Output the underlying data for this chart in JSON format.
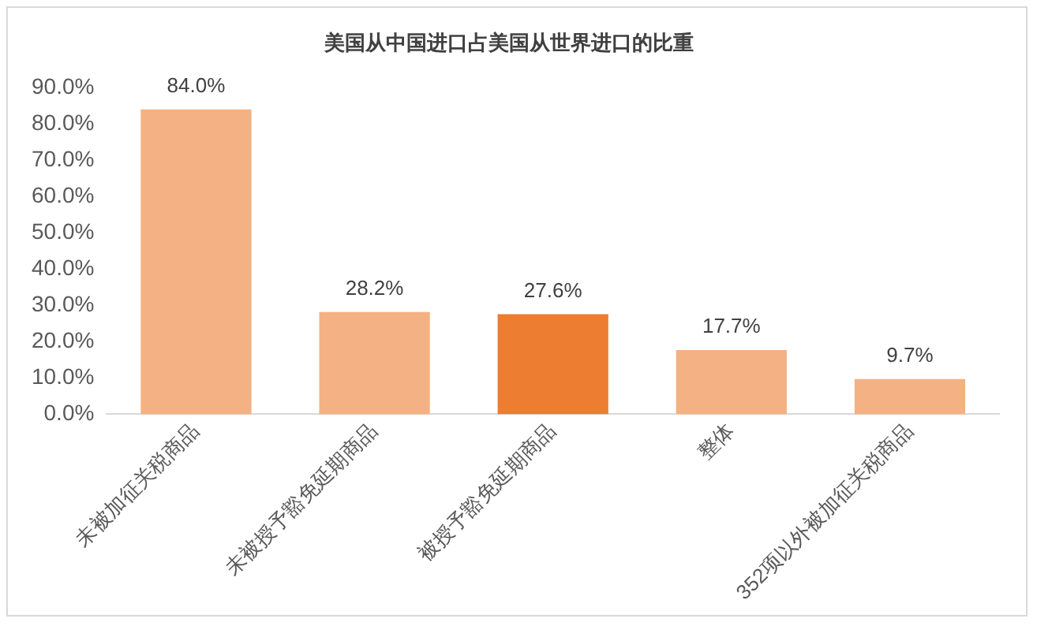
{
  "chart_data": {
    "type": "bar",
    "title": "美国从中国进口占美国从世界进口的比重",
    "categories": [
      "未被加征关税商品",
      "未被授予豁免延期商品",
      "被授予豁免延期商品",
      "整体",
      "352项以外被加征关税商品"
    ],
    "values": [
      84.0,
      28.2,
      27.6,
      17.7,
      9.7
    ],
    "colors": [
      "#f4b183",
      "#f4b183",
      "#ed7d31",
      "#f4b183",
      "#f4b183"
    ],
    "value_labels": [
      "84.0%",
      "28.2%",
      "27.6%",
      "17.7%",
      "9.7%"
    ],
    "ylim": [
      0,
      90
    ],
    "yticks": [
      {
        "value": 0,
        "label": "0.0%"
      },
      {
        "value": 10,
        "label": "10.0%"
      },
      {
        "value": 20,
        "label": "20.0%"
      },
      {
        "value": 30,
        "label": "30.0%"
      },
      {
        "value": 40,
        "label": "40.0%"
      },
      {
        "value": 50,
        "label": "50.0%"
      },
      {
        "value": 60,
        "label": "60.0%"
      },
      {
        "value": 70,
        "label": "70.0%"
      },
      {
        "value": 80,
        "label": "80.0%"
      },
      {
        "value": 90,
        "label": "90.0%"
      }
    ],
    "grid": false,
    "legend": false
  }
}
